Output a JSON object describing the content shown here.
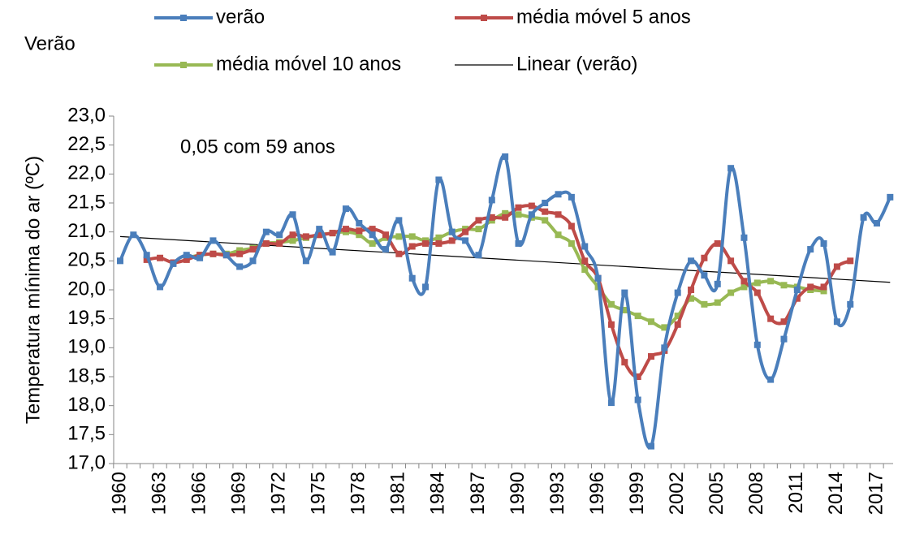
{
  "chart_data": {
    "type": "line",
    "title": "Verão",
    "y_label": "Temperatura mínima do ar (ºC)",
    "annotation": "0,05 com 59 anos",
    "categories": [
      "1960",
      null,
      null,
      "1963",
      null,
      null,
      "1966",
      null,
      null,
      "1969",
      null,
      null,
      "1972",
      null,
      null,
      "1975",
      null,
      null,
      "1978",
      null,
      null,
      "1981",
      null,
      null,
      "1984",
      null,
      null,
      "1987",
      null,
      null,
      "1990",
      null,
      null,
      "1993",
      null,
      null,
      "1996",
      null,
      null,
      "1999",
      null,
      null,
      "2002",
      null,
      null,
      "2005",
      null,
      null,
      "2008",
      null,
      null,
      "2011",
      null,
      null,
      "2014",
      null,
      null,
      "2017",
      null
    ],
    "series": [
      {
        "name": "verão",
        "color": "#4a7ebb",
        "values": [
          20.5,
          20.95,
          20.6,
          20.05,
          20.45,
          20.6,
          20.55,
          20.85,
          20.6,
          20.4,
          20.5,
          21.0,
          20.95,
          21.3,
          20.5,
          21.05,
          20.65,
          21.4,
          21.15,
          20.95,
          20.7,
          21.2,
          20.2,
          20.05,
          21.9,
          21.0,
          20.85,
          20.6,
          21.55,
          22.3,
          20.8,
          21.3,
          21.5,
          21.65,
          21.6,
          20.75,
          20.2,
          18.05,
          19.95,
          18.1,
          17.3,
          19.0,
          19.95,
          20.5,
          20.25,
          20.1,
          22.1,
          20.9,
          19.05,
          18.45,
          19.15,
          20.0,
          20.7,
          20.8,
          19.45,
          19.75,
          21.25,
          21.15,
          21.6
        ]
      },
      {
        "name": "média móvel 5 anos",
        "color": "#be4b48",
        "values": [
          null,
          null,
          20.52,
          20.55,
          20.47,
          20.52,
          20.6,
          20.62,
          20.6,
          20.62,
          20.7,
          20.8,
          20.8,
          20.95,
          20.92,
          20.95,
          20.98,
          21.05,
          21.02,
          21.05,
          20.95,
          20.62,
          20.75,
          20.8,
          20.8,
          20.85,
          21.0,
          21.2,
          21.25,
          21.25,
          21.42,
          21.45,
          21.35,
          21.3,
          21.1,
          20.5,
          20.2,
          19.4,
          18.75,
          18.5,
          18.85,
          18.95,
          19.4,
          20.0,
          20.55,
          20.8,
          20.5,
          20.15,
          19.95,
          19.5,
          19.45,
          19.85,
          20.05,
          20.05,
          20.4,
          20.5,
          null,
          null,
          null
        ]
      },
      {
        "name": "média móvel 10 anos",
        "color": "#98b954",
        "values": [
          null,
          null,
          null,
          null,
          null,
          20.55,
          20.6,
          20.62,
          20.62,
          20.68,
          20.72,
          20.8,
          20.82,
          20.85,
          20.9,
          20.95,
          20.98,
          21.0,
          20.95,
          20.8,
          20.9,
          20.92,
          20.92,
          20.85,
          20.9,
          21.0,
          21.05,
          21.05,
          21.2,
          21.32,
          21.3,
          21.25,
          21.2,
          20.95,
          20.8,
          20.35,
          20.05,
          19.75,
          19.65,
          19.55,
          19.45,
          19.35,
          19.55,
          19.85,
          19.75,
          19.78,
          19.95,
          20.05,
          20.12,
          20.15,
          20.08,
          20.05,
          20.0,
          19.98,
          null,
          null,
          null,
          null,
          null
        ]
      }
    ],
    "trendline": {
      "name": "Linear (verão)",
      "color": "#000000",
      "values": [
        20.92,
        20.13
      ]
    },
    "ylim": [
      17.0,
      23.0
    ],
    "yticks": [
      {
        "value": 17.0,
        "label": "17,0"
      },
      {
        "value": 17.5,
        "label": "17,5"
      },
      {
        "value": 18.0,
        "label": "18,0"
      },
      {
        "value": 18.5,
        "label": "18,5"
      },
      {
        "value": 19.0,
        "label": "19,0"
      },
      {
        "value": 19.5,
        "label": "19,5"
      },
      {
        "value": 20.0,
        "label": "20,0"
      },
      {
        "value": 20.5,
        "label": "20,5"
      },
      {
        "value": 21.0,
        "label": "21,0"
      },
      {
        "value": 21.5,
        "label": "21,5"
      },
      {
        "value": 22.0,
        "label": "22,0"
      },
      {
        "value": 22.5,
        "label": "22,5"
      },
      {
        "value": 23.0,
        "label": "23,0"
      }
    ],
    "grid": false
  }
}
